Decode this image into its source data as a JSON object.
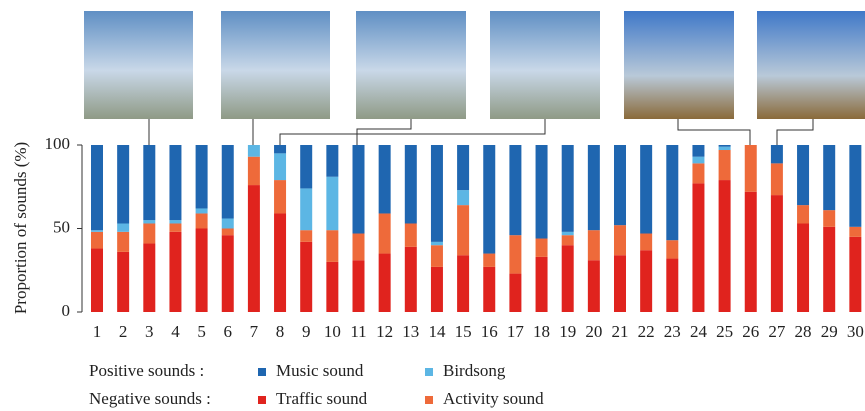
{
  "chart_data": {
    "type": "stacked_bar",
    "y_label": "Proportion of sounds (%)",
    "categories": [
      "1",
      "2",
      "3",
      "4",
      "5",
      "6",
      "7",
      "8",
      "9",
      "10",
      "11",
      "12",
      "13",
      "14",
      "15",
      "16",
      "17",
      "18",
      "19",
      "20",
      "21",
      "22",
      "23",
      "24",
      "25",
      "26",
      "27",
      "28",
      "29",
      "30"
    ],
    "ylim": [
      0,
      100
    ],
    "yticks": [
      0,
      50,
      100
    ],
    "legend_groups": [
      "Positive sounds :",
      "Negative sounds :"
    ],
    "series": [
      {
        "name": "Music sound",
        "color": "#1f66b0",
        "values": [
          51,
          47,
          45,
          45,
          38,
          44,
          0,
          5,
          26,
          19,
          53,
          41,
          47,
          58,
          27,
          65,
          54,
          56,
          52,
          51,
          48,
          53,
          57,
          7,
          1,
          0,
          11,
          36,
          39,
          49
        ]
      },
      {
        "name": "Birdsong",
        "color": "#5cb6e4",
        "values": [
          1,
          5,
          2,
          2,
          3,
          6,
          7,
          16,
          25,
          32,
          0,
          0,
          0,
          2,
          9,
          0,
          0,
          0,
          2,
          0,
          0,
          0,
          0,
          4,
          2,
          0,
          0,
          0,
          0,
          0
        ]
      },
      {
        "name": "Traffic sound",
        "color": "#e0231e",
        "values": [
          38,
          36,
          41,
          48,
          50,
          46,
          76,
          59,
          42,
          30,
          31,
          35,
          39,
          27,
          34,
          27,
          23,
          33,
          40,
          31,
          34,
          37,
          32,
          77,
          79,
          72,
          70,
          53,
          51,
          45
        ]
      },
      {
        "name": "Activity sound",
        "color": "#ee6a3a",
        "values": [
          10,
          12,
          12,
          5,
          9,
          4,
          17,
          20,
          7,
          19,
          16,
          24,
          14,
          13,
          30,
          8,
          23,
          11,
          6,
          18,
          18,
          10,
          11,
          12,
          18,
          28,
          19,
          11,
          10,
          6
        ]
      }
    ]
  }
}
